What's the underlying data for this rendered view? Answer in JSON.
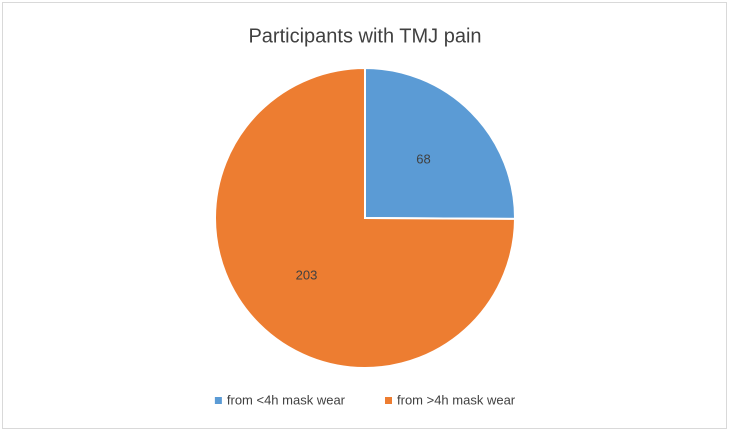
{
  "chart_data": {
    "type": "pie",
    "title": "Participants with TMJ pain",
    "categories": [
      "from <4h mask wear",
      "from >4h mask wear"
    ],
    "values": [
      68,
      203
    ],
    "colors": [
      "#5b9bd5",
      "#ed7d31"
    ],
    "legend": "bottom"
  }
}
